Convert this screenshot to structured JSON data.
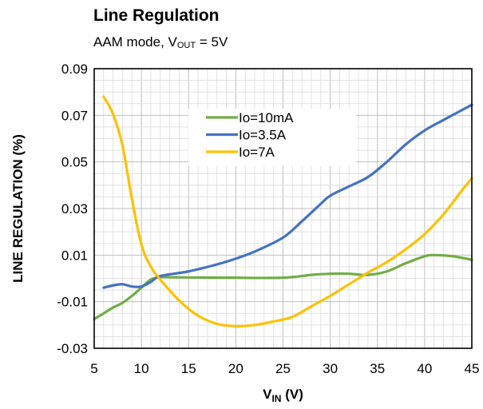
{
  "chart_data": {
    "type": "line",
    "title": "Line Regulation",
    "subtitle": {
      "prefix": "AAM mode, V",
      "sub": "OUT",
      "suffix": " = 5V"
    },
    "xlabel": {
      "main": "V",
      "sub": "IN",
      "suffix": " (V)"
    },
    "ylabel": "LINE REGULATION (%)",
    "xlim": [
      5,
      45
    ],
    "ylim": [
      -0.03,
      0.09
    ],
    "xticks": [
      5,
      10,
      15,
      20,
      25,
      30,
      35,
      40,
      45
    ],
    "xtick_labels": [
      "5",
      "10",
      "15",
      "20",
      "25",
      "30",
      "35",
      "40",
      "45"
    ],
    "yticks": [
      -0.03,
      -0.01,
      0.01,
      0.03,
      0.05,
      0.07,
      0.09
    ],
    "ytick_labels": [
      "-0.03",
      "-0.01",
      "0.01",
      "0.03",
      "0.05",
      "0.07",
      "0.09"
    ],
    "grid": true,
    "legend_position": "top-center",
    "series": [
      {
        "name": "Io=10mA",
        "color": "#70ad47",
        "x": [
          5,
          6,
          7,
          8,
          9,
          10,
          11,
          12,
          13,
          15,
          18,
          20,
          22,
          25,
          27,
          28,
          30,
          32,
          34,
          36,
          38,
          40,
          41,
          43,
          45
        ],
        "y": [
          -0.0175,
          -0.015,
          -0.0125,
          -0.0105,
          -0.0075,
          -0.004,
          -0.0005,
          0.0005,
          0.0005,
          0.0004,
          0.0003,
          0.0003,
          0.0002,
          0.0003,
          0.001,
          0.0015,
          0.002,
          0.002,
          0.0015,
          0.003,
          0.0065,
          0.0095,
          0.01,
          0.0095,
          0.008
        ]
      },
      {
        "name": "Io=3.5A",
        "color": "#4472c4",
        "x": [
          6,
          7,
          8,
          9,
          10,
          11,
          12,
          15,
          18,
          20,
          22,
          25,
          27,
          29,
          30,
          32,
          34,
          36,
          38,
          40,
          42,
          45
        ],
        "y": [
          -0.004,
          -0.003,
          -0.0025,
          -0.0035,
          -0.0035,
          -0.0015,
          0.001,
          0.003,
          0.006,
          0.0085,
          0.0115,
          0.0175,
          0.0245,
          0.032,
          0.0355,
          0.0395,
          0.0435,
          0.05,
          0.0575,
          0.0635,
          0.068,
          0.0745
        ]
      },
      {
        "name": "Io=7A",
        "color": "#ffc000",
        "x": [
          6,
          7,
          8,
          9,
          10,
          11,
          12,
          14,
          16,
          18,
          20,
          22,
          24,
          26,
          28,
          30,
          32,
          34,
          36,
          38,
          40,
          42,
          44,
          45
        ],
        "y": [
          0.078,
          0.0705,
          0.057,
          0.034,
          0.0145,
          0.005,
          -0.0005,
          -0.0095,
          -0.016,
          -0.0195,
          -0.0205,
          -0.02,
          -0.0185,
          -0.0165,
          -0.012,
          -0.0075,
          -0.0025,
          0.0025,
          0.007,
          0.0125,
          0.019,
          0.0275,
          0.038,
          0.043
        ]
      }
    ]
  }
}
